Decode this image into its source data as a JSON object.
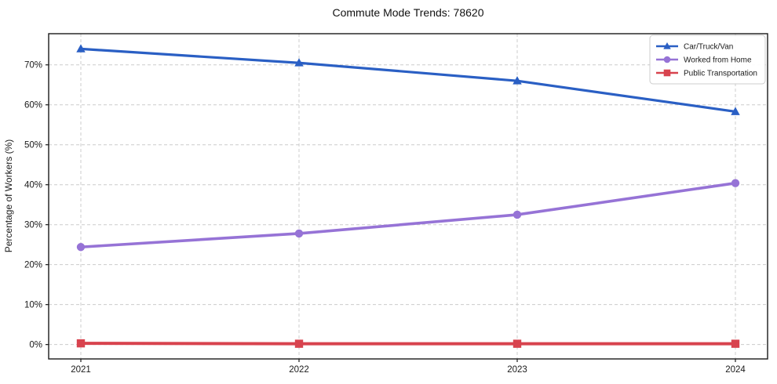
{
  "page": {
    "title": "Commute Mode Trends: 78620"
  },
  "chart_data": {
    "type": "line",
    "title": "Commute Mode Trends: 78620",
    "xlabel": "",
    "ylabel": "Percentage of Workers (%)",
    "categories": [
      "2021",
      "2022",
      "2023",
      "2024"
    ],
    "series": [
      {
        "name": "Car/Truck/Van",
        "color": "#2a5fc4",
        "marker": "triangle",
        "linewidth": 3.2,
        "values": [
          74.0,
          70.5,
          66.0,
          58.3
        ]
      },
      {
        "name": "Worked from Home",
        "color": "#9673d6",
        "marker": "circle",
        "linewidth": 3.6,
        "values": [
          24.4,
          27.8,
          32.5,
          40.4
        ]
      },
      {
        "name": "Public Transportation",
        "color": "#d8434e",
        "marker": "square",
        "linewidth": 4.0,
        "values": [
          0.3,
          0.2,
          0.2,
          0.2
        ]
      }
    ],
    "yticks": [
      0,
      10,
      20,
      30,
      40,
      50,
      60,
      70
    ],
    "ytick_labels": [
      "0%",
      "10%",
      "20%",
      "30%",
      "40%",
      "50%",
      "60%",
      "70%"
    ],
    "ylim": [
      -3.6,
      77.8
    ],
    "grid": "dashed",
    "grid_color": "#cccccc",
    "spine_color": "#1a1a1a",
    "tick_label_color": "#1a1a1a",
    "legend_position": "top-right",
    "legend_border_color": "#cccccc"
  }
}
